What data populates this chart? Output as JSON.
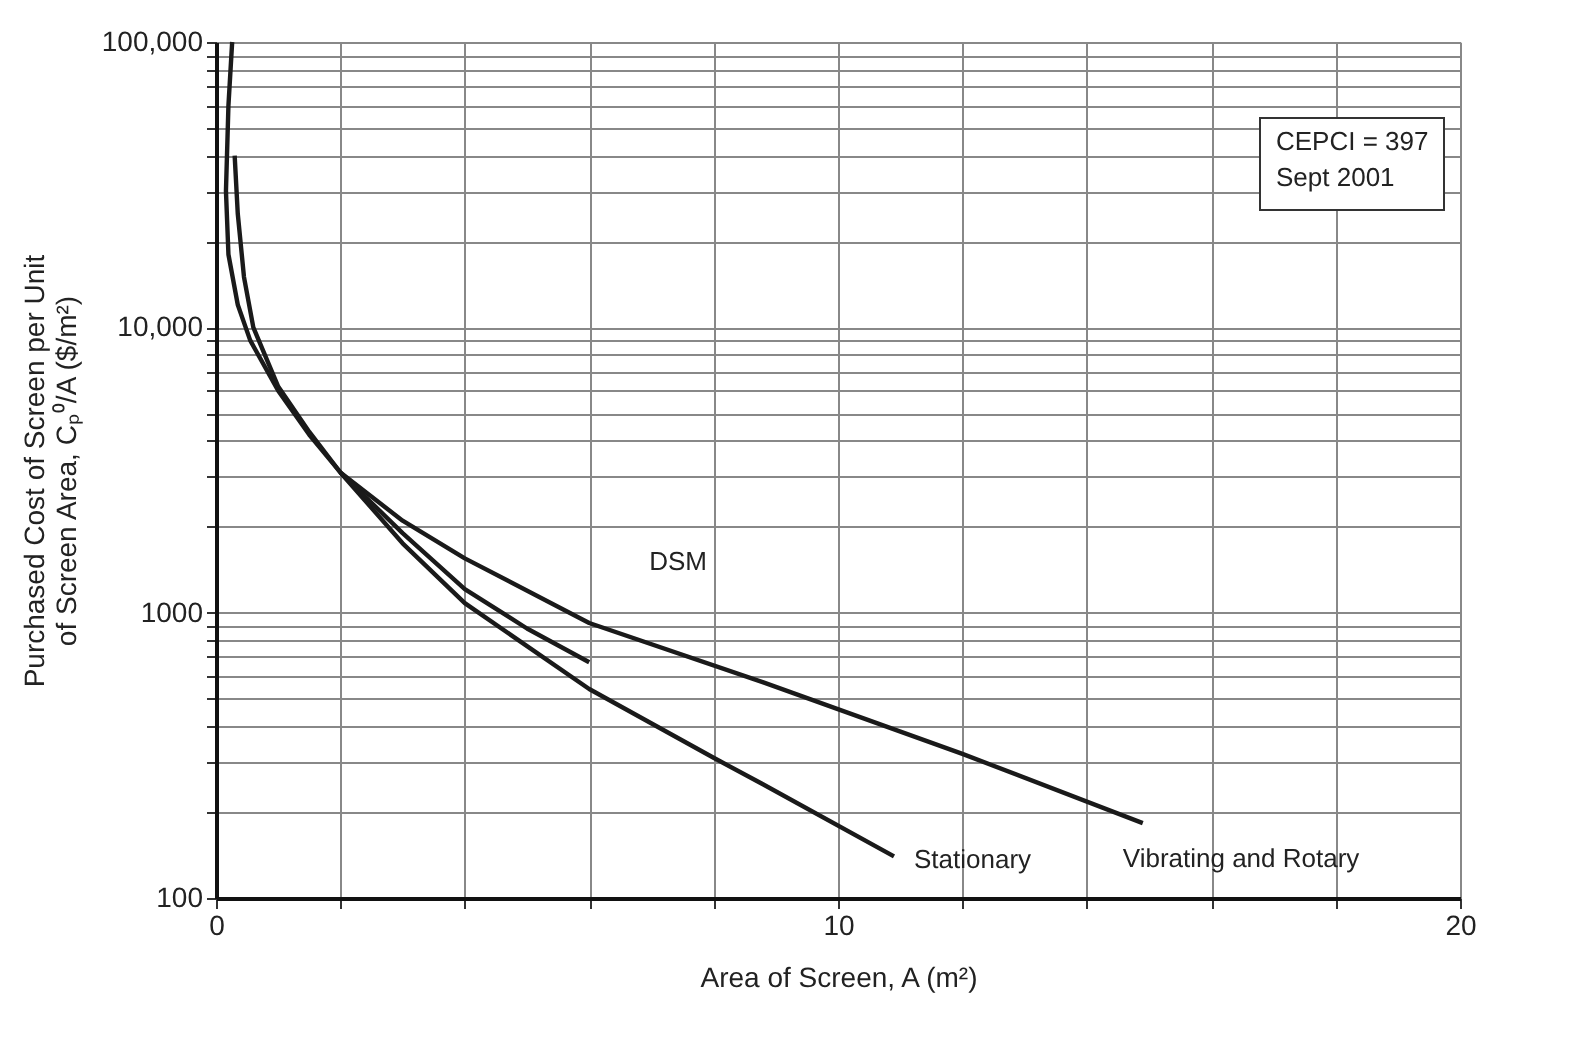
{
  "chart_data": {
    "type": "line",
    "xlabel": "Area of Screen, A (m²)",
    "ylabel": "Purchased Cost of Screen per Unit\nof Screen Area, Cₚ⁰/A ($/m²)",
    "log": "y",
    "grid": true,
    "legend": false,
    "marker": "none",
    "line_style": "solid",
    "xlim": [
      0,
      20
    ],
    "ylim": [
      100,
      100000
    ],
    "xticks": [
      0,
      {
        "value": 2,
        "label": null
      },
      {
        "value": 4,
        "label": null
      },
      {
        "value": 6,
        "label": null
      },
      {
        "value": 8,
        "label": null
      },
      10,
      {
        "value": 12,
        "label": null
      },
      {
        "value": 14,
        "label": null
      },
      {
        "value": 16,
        "label": null
      },
      {
        "value": 18,
        "label": null
      },
      20
    ],
    "yticks": [
      100,
      {
        "value": 200,
        "label": null
      },
      {
        "value": 300,
        "label": null
      },
      {
        "value": 400,
        "label": null
      },
      {
        "value": 500,
        "label": null
      },
      {
        "value": 600,
        "label": null
      },
      {
        "value": 700,
        "label": null
      },
      {
        "value": 800,
        "label": null
      },
      {
        "value": 900,
        "label": null
      },
      {
        "value": 1000,
        "label": "1000"
      },
      {
        "value": 2000,
        "label": null
      },
      {
        "value": 3000,
        "label": null
      },
      {
        "value": 4000,
        "label": null
      },
      {
        "value": 5000,
        "label": null
      },
      {
        "value": 6000,
        "label": null
      },
      {
        "value": 7000,
        "label": null
      },
      {
        "value": 8000,
        "label": null
      },
      {
        "value": 9000,
        "label": null
      },
      {
        "value": 10000,
        "label": "10,000"
      },
      {
        "value": 20000,
        "label": null
      },
      {
        "value": 30000,
        "label": null
      },
      {
        "value": 40000,
        "label": null
      },
      {
        "value": 50000,
        "label": null
      },
      {
        "value": 60000,
        "label": null
      },
      {
        "value": 70000,
        "label": null
      },
      {
        "value": 80000,
        "label": null
      },
      {
        "value": 90000,
        "label": null
      },
      {
        "value": 100000,
        "label": "100,000"
      }
    ],
    "series": [
      {
        "name": "Vibrating and Rotary",
        "color": "#1a1a1a",
        "x": [
          0.26,
          0.2,
          0.16,
          0.2,
          0.35,
          0.55,
          1,
          1.5,
          2,
          3,
          4,
          6,
          8.8,
          12,
          14.9
        ],
        "values": [
          100000,
          60000,
          30000,
          18000,
          12000,
          9000,
          6000,
          4200,
          3100,
          2100,
          1550,
          920,
          570,
          320,
          183
        ]
      },
      {
        "name": "Stationary",
        "color": "#1a1a1a",
        "x": [
          0.3,
          0.35,
          0.45,
          0.6,
          1,
          1.5,
          2,
          3,
          4,
          6,
          8,
          8.8,
          10.9
        ],
        "values": [
          40000,
          25000,
          15000,
          10000,
          6200,
          4300,
          3100,
          1750,
          1080,
          540,
          310,
          250,
          140
        ]
      },
      {
        "name": "DSM",
        "color": "#1a1a1a",
        "x": [
          2,
          3,
          4,
          5,
          6
        ],
        "values": [
          3100,
          1900,
          1210,
          880,
          670
        ]
      }
    ],
    "annotations": [
      "CEPCI = 397\nSept 2001"
    ]
  }
}
